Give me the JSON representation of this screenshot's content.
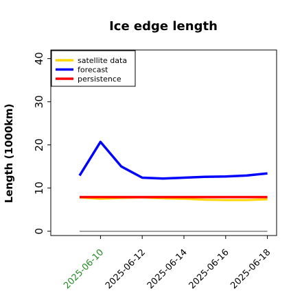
{
  "chart_data": {
    "type": "line",
    "title": "Ice edge length",
    "xlabel": "",
    "ylabel": "Length (1000km)",
    "ylim": [
      -1,
      42
    ],
    "yticks": [
      0,
      10,
      20,
      30,
      40
    ],
    "x": [
      "2025-06-09",
      "2025-06-10",
      "2025-06-11",
      "2025-06-12",
      "2025-06-13",
      "2025-06-14",
      "2025-06-15",
      "2025-06-16",
      "2025-06-17",
      "2025-06-18"
    ],
    "xticks": [
      "2025-06-10",
      "2025-06-12",
      "2025-06-14",
      "2025-06-16",
      "2025-06-18"
    ],
    "highlight_tick": "2025-06-10",
    "grid": false,
    "legend_position": "top-left",
    "series": [
      {
        "name": "satellite data",
        "color": "#FFD700",
        "values": [
          7.8,
          7.5,
          7.7,
          7.8,
          7.6,
          7.5,
          7.3,
          7.2,
          7.2,
          7.4
        ]
      },
      {
        "name": "forecast",
        "color": "#0000FF",
        "values": [
          12.9,
          20.7,
          15.0,
          12.4,
          12.2,
          12.4,
          12.6,
          12.7,
          12.9,
          13.4
        ]
      },
      {
        "name": "persistence",
        "color": "#FF0000",
        "values": [
          7.9,
          7.9,
          7.9,
          7.9,
          7.9,
          7.9,
          7.9,
          7.9,
          7.9,
          7.9
        ]
      }
    ],
    "reference_line": {
      "y": 0,
      "color": "#808080"
    },
    "colors": {
      "highlight_tick": "#228B22",
      "axis": "#000000"
    }
  }
}
